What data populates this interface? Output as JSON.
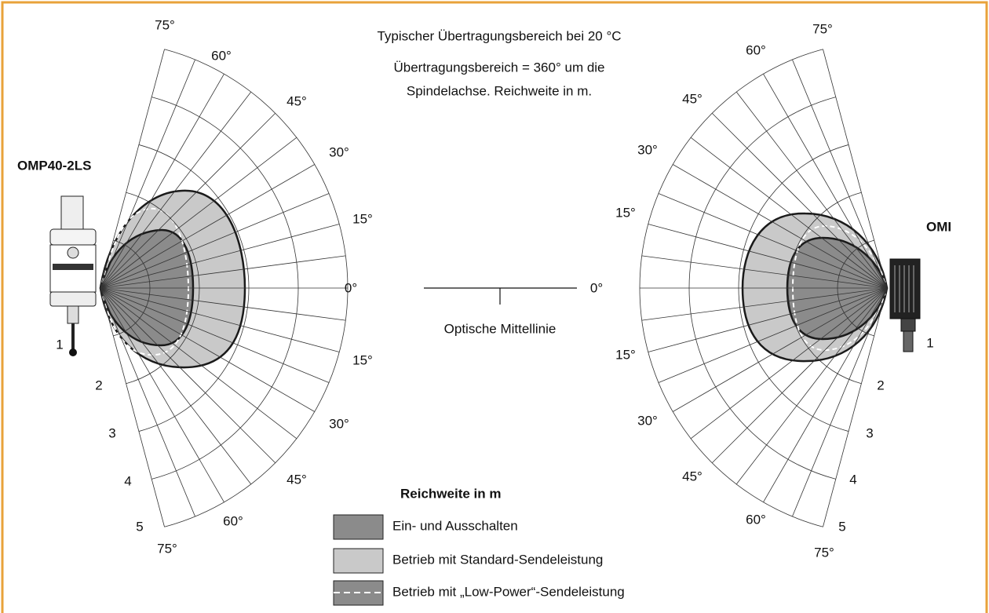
{
  "title_lines": [
    "Typischer Übertragungsbereich bei 20 °C",
    "Übertragungsbereich = 360° um die",
    "Spindelachse. Reichweite in m."
  ],
  "left": {
    "name": "OMP40-2LS",
    "angle_labels": [
      "75°",
      "60°",
      "45°",
      "30°",
      "15°",
      "0°",
      "15°",
      "30°",
      "45°",
      "60°",
      "75°"
    ],
    "ring_labels": [
      "1",
      "2",
      "3",
      "4",
      "5"
    ]
  },
  "right": {
    "name": "OMI",
    "angle_labels": [
      "75°",
      "60°",
      "45°",
      "30°",
      "15°",
      "0°",
      "15°",
      "30°",
      "45°",
      "60°",
      "75°"
    ],
    "ring_labels": [
      "1",
      "2",
      "3",
      "4",
      "5"
    ]
  },
  "centerline_label": "Optische Mittellinie",
  "legend": {
    "title": "Reichweite in m",
    "items": [
      "Ein- und Ausschalten",
      "Betrieb mit Standard-Sendeleistung",
      "Betrieb mit „Low-Power“-Sendeleistung"
    ]
  }
}
